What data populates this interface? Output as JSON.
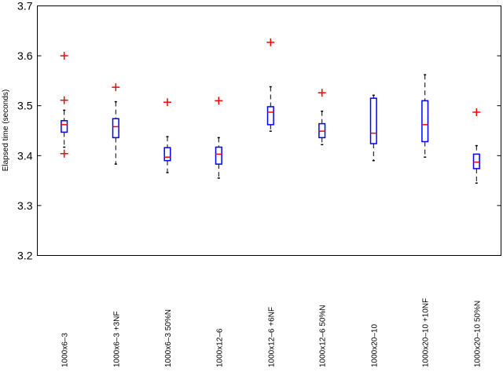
{
  "chart_data": {
    "type": "boxplot",
    "title": "",
    "xlabel": "",
    "ylabel": "Elapsed time (seconds)",
    "ylim": [
      3.2,
      3.7
    ],
    "yticks": [
      3.2,
      3.3,
      3.4,
      3.5,
      3.6,
      3.7
    ],
    "grid": false,
    "colors": {
      "box": "#0000ff",
      "median": "#ff0000",
      "whisker": "#000000",
      "outlier": "#ff0000"
    },
    "categories": [
      "1000x6–3",
      "1000x6–3 +3NF",
      "1000x6–3 50%N",
      "1000x12–6",
      "1000x12–6 +6NF",
      "1000x12–6 50%N",
      "1000x20–10",
      "1000x20–10 +10NF",
      "1000x20–10 50%N"
    ],
    "boxes": [
      {
        "whisker_low": 3.417,
        "q1": 3.447,
        "median": 3.462,
        "q3": 3.47,
        "whisker_high": 3.491,
        "outliers": [
          3.6,
          3.511,
          3.404
        ]
      },
      {
        "whisker_low": 3.383,
        "q1": 3.436,
        "median": 3.458,
        "q3": 3.474,
        "whisker_high": 3.508,
        "outliers": [
          3.537
        ]
      },
      {
        "whisker_low": 3.366,
        "q1": 3.39,
        "median": 3.397,
        "q3": 3.416,
        "whisker_high": 3.438,
        "outliers": [
          3.507
        ]
      },
      {
        "whisker_low": 3.355,
        "q1": 3.383,
        "median": 3.403,
        "q3": 3.417,
        "whisker_high": 3.436,
        "outliers": [
          3.51
        ]
      },
      {
        "whisker_low": 3.449,
        "q1": 3.462,
        "median": 3.487,
        "q3": 3.498,
        "whisker_high": 3.538,
        "outliers": [
          3.627
        ]
      },
      {
        "whisker_low": 3.422,
        "q1": 3.436,
        "median": 3.449,
        "q3": 3.464,
        "whisker_high": 3.489,
        "outliers": [
          3.526
        ]
      },
      {
        "whisker_low": 3.39,
        "q1": 3.424,
        "median": 3.445,
        "q3": 3.515,
        "whisker_high": 3.521,
        "outliers": []
      },
      {
        "whisker_low": 3.397,
        "q1": 3.428,
        "median": 3.462,
        "q3": 3.51,
        "whisker_high": 3.562,
        "outliers": []
      },
      {
        "whisker_low": 3.345,
        "q1": 3.374,
        "median": 3.387,
        "q3": 3.403,
        "whisker_high": 3.42,
        "outliers": [
          3.487
        ]
      }
    ]
  }
}
